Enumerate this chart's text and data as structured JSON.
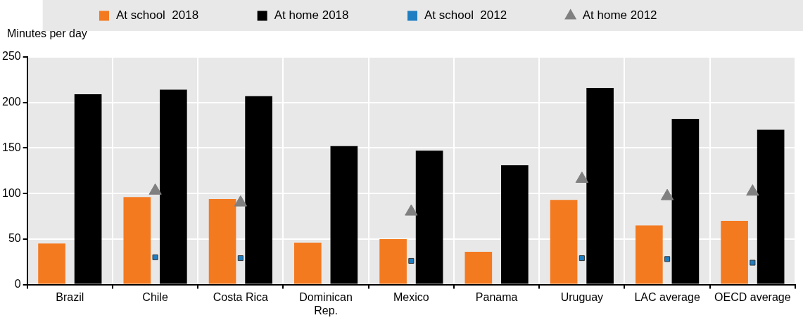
{
  "chart_data": {
    "type": "bar",
    "ylabel": "Minutes per day",
    "categories": [
      "Brazil",
      "Chile",
      "Costa Rica",
      "Dominican\nRep.",
      "Mexico",
      "Panama",
      "Uruguay",
      "LAC average",
      "OECD average"
    ],
    "series": [
      {
        "name": "At school  2018",
        "color": "#f47a20",
        "values": [
          45,
          96,
          94,
          46,
          50,
          36,
          93,
          65,
          70
        ]
      },
      {
        "name": "At home 2018",
        "color": "#000000",
        "values": [
          209,
          214,
          207,
          152,
          147,
          131,
          216,
          182,
          170
        ]
      },
      {
        "name": "At school  2012",
        "type": "scatter",
        "marker": "square",
        "color": "#1f7ec2",
        "x": [
          "Brazil",
          "Chile",
          "Costa Rica",
          "Dominican\nRep.",
          "Mexico",
          "Panama",
          "Uruguay",
          "LAC average",
          "OECD average"
        ],
        "values": [
          null,
          30,
          29,
          null,
          26,
          null,
          29,
          28,
          24
        ]
      },
      {
        "name": "At home 2012",
        "type": "scatter",
        "marker": "triangle",
        "color": "#808080",
        "x": [
          "Brazil",
          "Chile",
          "Costa Rica",
          "Dominican\nRep.",
          "Mexico",
          "Panama",
          "Uruguay",
          "LAC average",
          "OECD average"
        ],
        "values": [
          null,
          103,
          90,
          null,
          80,
          null,
          116,
          97,
          102
        ]
      }
    ],
    "ylim": [
      0,
      250
    ],
    "yticks": [
      0,
      50,
      100,
      150,
      200,
      250
    ],
    "grid": true,
    "legend": "top"
  }
}
